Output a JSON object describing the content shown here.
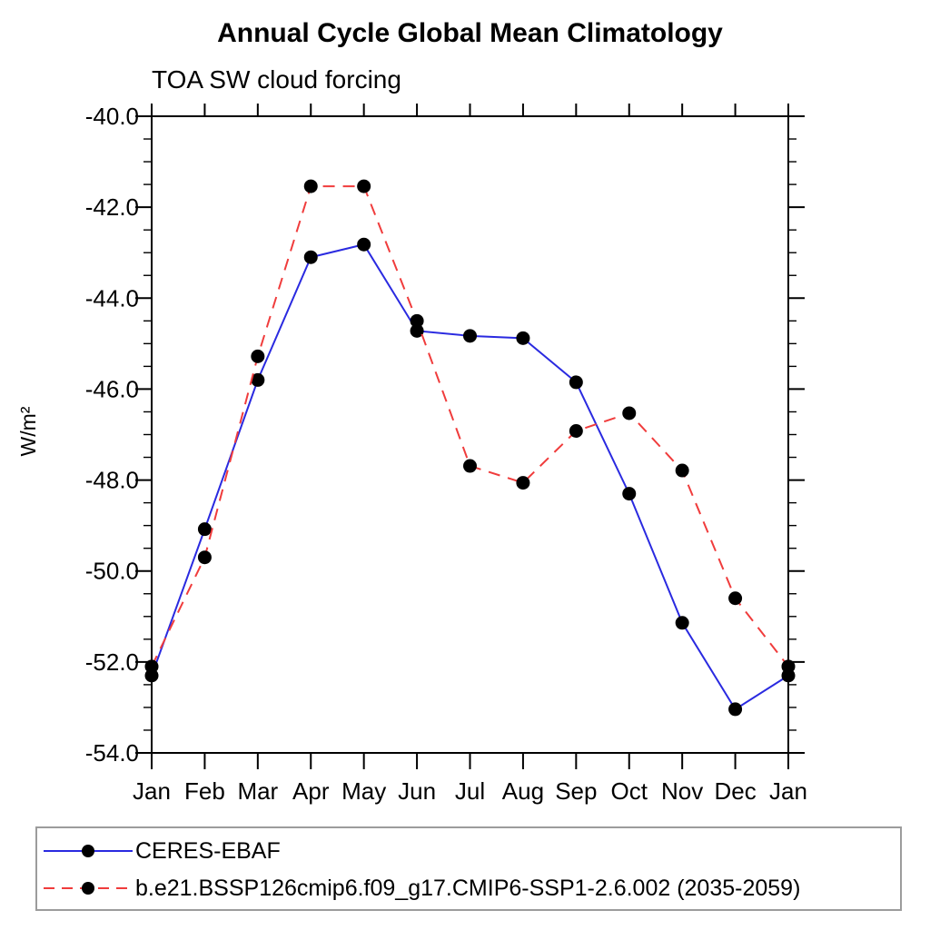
{
  "chart": {
    "title": "Annual Cycle Global Mean Climatology",
    "subtitle": "TOA SW cloud forcing",
    "ylabel": "W/m²",
    "colors": {
      "series1": "#2a2ae0",
      "series2": "#f03c3c",
      "marker": "#000000",
      "axis": "#000000",
      "legend_border": "#9c9c9c"
    },
    "legend": [
      {
        "label": "CERES-EBAF",
        "line_style": "solid",
        "marker": "filled-circle"
      },
      {
        "label": "b.e21.BSSP126cmip6.f09_g17.CMIP6-SSP1-2.6.002 (2035-2059)",
        "line_style": "dashed",
        "marker": "filled-circle"
      }
    ]
  },
  "chart_data": {
    "type": "line",
    "title": "Annual Cycle Global Mean Climatology",
    "subtitle": "TOA SW cloud forcing",
    "xlabel": "",
    "ylabel": "W/m²",
    "categories": [
      "Jan",
      "Feb",
      "Mar",
      "Apr",
      "May",
      "Jun",
      "Jul",
      "Aug",
      "Sep",
      "Oct",
      "Nov",
      "Dec",
      "Jan"
    ],
    "series": [
      {
        "name": "CERES-EBAF",
        "color": "#2a2ae0",
        "style": "solid",
        "marker": "filled-circle",
        "values": [
          -52.3,
          -49.08,
          -45.8,
          -43.1,
          -42.82,
          -44.72,
          -44.83,
          -44.88,
          -45.85,
          -48.3,
          -51.14,
          -53.04,
          -52.3
        ]
      },
      {
        "name": "b.e21.BSSP126cmip6.f09_g17.CMIP6-SSP1-2.6.002 (2035-2059)",
        "color": "#f03c3c",
        "style": "dashed",
        "marker": "filled-circle",
        "values": [
          -52.1,
          -49.7,
          -45.28,
          -41.54,
          -41.54,
          -44.5,
          -47.69,
          -48.06,
          -46.92,
          -46.53,
          -47.79,
          -50.6,
          -52.1
        ]
      }
    ],
    "ylim": [
      -54.0,
      -40.0
    ],
    "yticks_major": [
      -40.0,
      -42.0,
      -44.0,
      -46.0,
      -48.0,
      -50.0,
      -52.0,
      -54.0
    ],
    "ytick_labels": [
      "-40.0",
      "-42.0",
      "-44.0",
      "-46.0",
      "-48.0",
      "-50.0",
      "-52.0",
      "-54.0"
    ],
    "ytick_minor_step": 0.5,
    "grid": false,
    "legend_position": "bottom-left-box"
  }
}
